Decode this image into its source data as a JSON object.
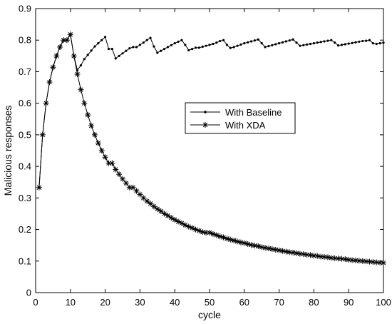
{
  "chart_data": {
    "type": "line",
    "xlabel": "cycle",
    "ylabel": "Malicious responses",
    "xlim": [
      0,
      100
    ],
    "ylim": [
      0,
      0.9
    ],
    "xticks": [
      0,
      10,
      20,
      30,
      40,
      50,
      60,
      70,
      80,
      90,
      100
    ],
    "yticks": [
      0,
      0.1,
      0.2,
      0.3,
      0.4,
      0.5,
      0.6,
      0.7,
      0.8,
      0.9
    ],
    "xtick_labels": [
      "0",
      "10",
      "20",
      "30",
      "40",
      "50",
      "60",
      "70",
      "80",
      "90",
      "100"
    ],
    "ytick_labels": [
      "0",
      "0.1",
      "0.2",
      "0.3",
      "0.4",
      "0.5",
      "0.6",
      "0.7",
      "0.8",
      "0.9"
    ],
    "grid": false,
    "legend_position": "center",
    "series": [
      {
        "name": "With Baseline",
        "marker": "dot",
        "x": [
          1,
          2,
          3,
          4,
          5,
          6,
          7,
          8,
          9,
          10,
          11,
          12,
          13,
          14,
          15,
          16,
          17,
          18,
          19,
          20,
          21,
          22,
          23,
          24,
          25,
          26,
          27,
          28,
          29,
          30,
          31,
          32,
          33,
          34,
          35,
          36,
          37,
          38,
          39,
          40,
          41,
          42,
          43,
          44,
          45,
          46,
          47,
          48,
          49,
          50,
          51,
          52,
          53,
          54,
          55,
          56,
          57,
          58,
          59,
          60,
          61,
          62,
          63,
          64,
          65,
          66,
          67,
          68,
          69,
          70,
          71,
          72,
          73,
          74,
          75,
          76,
          77,
          78,
          79,
          80,
          81,
          82,
          83,
          84,
          85,
          86,
          87,
          88,
          89,
          90,
          91,
          92,
          93,
          94,
          95,
          96,
          97,
          98,
          99,
          100
        ],
        "y": [
          0.333,
          0.5,
          0.6,
          0.667,
          0.714,
          0.75,
          0.778,
          0.8,
          0.8,
          0.818,
          0.75,
          0.705,
          0.72,
          0.74,
          0.753,
          0.767,
          0.78,
          0.79,
          0.8,
          0.81,
          0.772,
          0.772,
          0.742,
          0.75,
          0.758,
          0.766,
          0.774,
          0.778,
          0.778,
          0.785,
          0.792,
          0.8,
          0.807,
          0.78,
          0.76,
          0.766,
          0.772,
          0.778,
          0.784,
          0.79,
          0.795,
          0.8,
          0.785,
          0.768,
          0.772,
          0.776,
          0.776,
          0.779,
          0.782,
          0.785,
          0.788,
          0.792,
          0.797,
          0.8,
          0.785,
          0.775,
          0.778,
          0.782,
          0.786,
          0.79,
          0.793,
          0.796,
          0.799,
          0.802,
          0.79,
          0.778,
          0.781,
          0.784,
          0.787,
          0.79,
          0.793,
          0.796,
          0.799,
          0.802,
          0.792,
          0.782,
          0.784,
          0.786,
          0.788,
          0.79,
          0.792,
          0.794,
          0.796,
          0.798,
          0.8,
          0.792,
          0.783,
          0.785,
          0.787,
          0.789,
          0.791,
          0.793,
          0.795,
          0.797,
          0.798,
          0.8,
          0.79,
          0.788,
          0.79,
          0.792
        ]
      },
      {
        "name": "With XDA",
        "marker": "star",
        "x": [
          1,
          2,
          3,
          4,
          5,
          6,
          7,
          8,
          9,
          10,
          11,
          12,
          13,
          14,
          15,
          16,
          17,
          18,
          19,
          20,
          21,
          22,
          23,
          24,
          25,
          26,
          27,
          28,
          29,
          30,
          31,
          32,
          33,
          34,
          35,
          36,
          37,
          38,
          39,
          40,
          41,
          42,
          43,
          44,
          45,
          46,
          47,
          48,
          49,
          50,
          51,
          52,
          53,
          54,
          55,
          56,
          57,
          58,
          59,
          60,
          61,
          62,
          63,
          64,
          65,
          66,
          67,
          68,
          69,
          70,
          71,
          72,
          73,
          74,
          75,
          76,
          77,
          78,
          79,
          80,
          81,
          82,
          83,
          84,
          85,
          86,
          87,
          88,
          89,
          90,
          91,
          92,
          93,
          94,
          95,
          96,
          97,
          98,
          99,
          100
        ],
        "y": [
          0.333,
          0.5,
          0.6,
          0.667,
          0.714,
          0.75,
          0.778,
          0.8,
          0.8,
          0.818,
          0.75,
          0.692,
          0.643,
          0.6,
          0.563,
          0.529,
          0.5,
          0.474,
          0.45,
          0.429,
          0.41,
          0.41,
          0.39,
          0.375,
          0.36,
          0.347,
          0.333,
          0.333,
          0.322,
          0.311,
          0.3,
          0.29,
          0.282,
          0.273,
          0.265,
          0.258,
          0.25,
          0.244,
          0.237,
          0.231,
          0.225,
          0.22,
          0.214,
          0.209,
          0.205,
          0.2,
          0.196,
          0.192,
          0.19,
          0.19,
          0.186,
          0.182,
          0.178,
          0.175,
          0.171,
          0.168,
          0.165,
          0.162,
          0.159,
          0.157,
          0.154,
          0.151,
          0.149,
          0.147,
          0.144,
          0.142,
          0.14,
          0.138,
          0.136,
          0.134,
          0.132,
          0.13,
          0.128,
          0.127,
          0.125,
          0.123,
          0.122,
          0.12,
          0.119,
          0.117,
          0.116,
          0.114,
          0.113,
          0.112,
          0.11,
          0.109,
          0.108,
          0.107,
          0.106,
          0.104,
          0.103,
          0.102,
          0.101,
          0.1,
          0.099,
          0.098,
          0.097,
          0.096,
          0.095,
          0.094
        ]
      }
    ]
  }
}
